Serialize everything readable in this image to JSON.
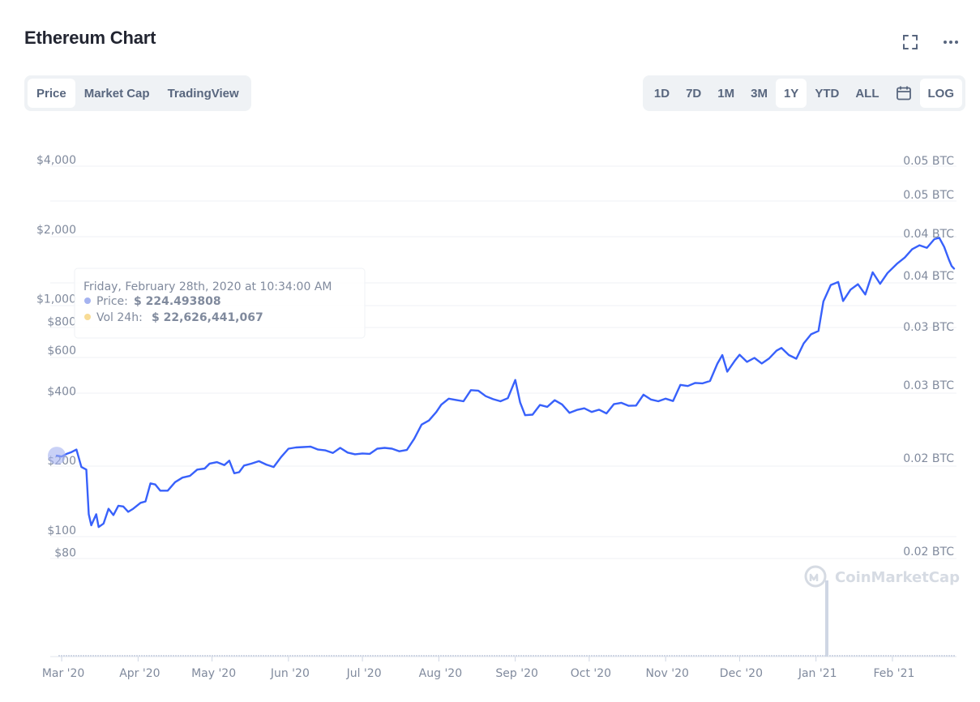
{
  "title": "Ethereum Chart",
  "header_icons": [
    "fullscreen-icon",
    "more-icon"
  ],
  "view_tabs": [
    {
      "label": "Price",
      "active": true
    },
    {
      "label": "Market Cap",
      "active": false
    },
    {
      "label": "TradingView",
      "active": false
    }
  ],
  "range_tabs": [
    {
      "label": "1D",
      "active": false
    },
    {
      "label": "7D",
      "active": false
    },
    {
      "label": "1M",
      "active": false
    },
    {
      "label": "3M",
      "active": false
    },
    {
      "label": "1Y",
      "active": true
    },
    {
      "label": "YTD",
      "active": false
    },
    {
      "label": "ALL",
      "active": false
    }
  ],
  "calendar_icon": "calendar-icon",
  "log_label": "LOG",
  "tooltip": {
    "date": "Friday, February 28th, 2020 at 10:34:00 AM",
    "price_label": "Price:",
    "price_value": "$ 224.493808",
    "volume_label": "Vol 24h:",
    "volume_value": "$ 22,626,441,067",
    "price_dot_color": "#a5b3f0",
    "volume_dot_color": "#f8dc96"
  },
  "watermark": "CoinMarketCap",
  "colors": {
    "line": "#3861fb",
    "grid": "#eff2f5",
    "axis_text": "#808a9d",
    "volume": "#cfd6e4"
  },
  "chart_data": {
    "type": "line",
    "title": "Ethereum Chart",
    "y_scale": "log",
    "ylim": [
      70,
      4200
    ],
    "y_ticks_left": [
      "$4,000",
      "$2,000",
      "$1,000",
      "$800",
      "$600",
      "$400",
      "$200",
      "$100",
      "$80"
    ],
    "y_tick_values_left": [
      4000,
      2000,
      1000,
      800,
      600,
      400,
      200,
      100,
      80
    ],
    "y_ticks_right": [
      "0.05 BTC",
      "0.05 BTC",
      "0.04 BTC",
      "0.04 BTC",
      "0.03 BTC",
      "0.03 BTC",
      "0.02 BTC",
      "0.02 BTC"
    ],
    "x_ticks": [
      "Mar '20",
      "Apr '20",
      "May '20",
      "Jun '20",
      "Jul '20",
      "Aug '20",
      "Sep '20",
      "Oct '20",
      "Nov '20",
      "Dec '20",
      "Jan '21",
      "Feb '21"
    ],
    "grid": true,
    "series": [
      {
        "values": [
          [
            "2020-02-28",
            224
          ],
          [
            "2020-03-01",
            222
          ],
          [
            "2020-03-03",
            228
          ],
          [
            "2020-03-05",
            232
          ],
          [
            "2020-03-07",
            238
          ],
          [
            "2020-03-09",
            200
          ],
          [
            "2020-03-11",
            195
          ],
          [
            "2020-03-12",
            125
          ],
          [
            "2020-03-13",
            112
          ],
          [
            "2020-03-15",
            125
          ],
          [
            "2020-03-16",
            110
          ],
          [
            "2020-03-18",
            114
          ],
          [
            "2020-03-20",
            132
          ],
          [
            "2020-03-22",
            124
          ],
          [
            "2020-03-24",
            136
          ],
          [
            "2020-03-26",
            135
          ],
          [
            "2020-03-28",
            128
          ],
          [
            "2020-03-30",
            132
          ],
          [
            "2020-04-02",
            140
          ],
          [
            "2020-04-04",
            142
          ],
          [
            "2020-04-06",
            170
          ],
          [
            "2020-04-08",
            168
          ],
          [
            "2020-04-10",
            158
          ],
          [
            "2020-04-13",
            158
          ],
          [
            "2020-04-16",
            172
          ],
          [
            "2020-04-19",
            180
          ],
          [
            "2020-04-22",
            183
          ],
          [
            "2020-04-25",
            195
          ],
          [
            "2020-04-28",
            197
          ],
          [
            "2020-04-30",
            207
          ],
          [
            "2020-05-03",
            210
          ],
          [
            "2020-05-06",
            204
          ],
          [
            "2020-05-08",
            213
          ],
          [
            "2020-05-10",
            188
          ],
          [
            "2020-05-12",
            190
          ],
          [
            "2020-05-14",
            203
          ],
          [
            "2020-05-17",
            207
          ],
          [
            "2020-05-20",
            212
          ],
          [
            "2020-05-23",
            205
          ],
          [
            "2020-05-26",
            200
          ],
          [
            "2020-05-29",
            221
          ],
          [
            "2020-06-01",
            240
          ],
          [
            "2020-06-04",
            243
          ],
          [
            "2020-06-07",
            244
          ],
          [
            "2020-06-10",
            245
          ],
          [
            "2020-06-13",
            238
          ],
          [
            "2020-06-16",
            236
          ],
          [
            "2020-06-19",
            230
          ],
          [
            "2020-06-22",
            242
          ],
          [
            "2020-06-25",
            231
          ],
          [
            "2020-06-28",
            227
          ],
          [
            "2020-07-01",
            229
          ],
          [
            "2020-07-04",
            228
          ],
          [
            "2020-07-07",
            240
          ],
          [
            "2020-07-10",
            242
          ],
          [
            "2020-07-13",
            240
          ],
          [
            "2020-07-16",
            234
          ],
          [
            "2020-07-19",
            237
          ],
          [
            "2020-07-22",
            265
          ],
          [
            "2020-07-25",
            305
          ],
          [
            "2020-07-28",
            318
          ],
          [
            "2020-07-31",
            346
          ],
          [
            "2020-08-02",
            372
          ],
          [
            "2020-08-05",
            395
          ],
          [
            "2020-08-08",
            390
          ],
          [
            "2020-08-11",
            385
          ],
          [
            "2020-08-14",
            430
          ],
          [
            "2020-08-17",
            428
          ],
          [
            "2020-08-20",
            405
          ],
          [
            "2020-08-23",
            393
          ],
          [
            "2020-08-26",
            385
          ],
          [
            "2020-08-29",
            397
          ],
          [
            "2020-09-01",
            476
          ],
          [
            "2020-09-03",
            380
          ],
          [
            "2020-09-05",
            335
          ],
          [
            "2020-09-08",
            337
          ],
          [
            "2020-09-11",
            371
          ],
          [
            "2020-09-14",
            364
          ],
          [
            "2020-09-17",
            389
          ],
          [
            "2020-09-20",
            373
          ],
          [
            "2020-09-23",
            343
          ],
          [
            "2020-09-26",
            353
          ],
          [
            "2020-09-29",
            359
          ],
          [
            "2020-10-02",
            346
          ],
          [
            "2020-10-05",
            354
          ],
          [
            "2020-10-08",
            341
          ],
          [
            "2020-10-11",
            374
          ],
          [
            "2020-10-14",
            379
          ],
          [
            "2020-10-17",
            368
          ],
          [
            "2020-10-20",
            369
          ],
          [
            "2020-10-23",
            411
          ],
          [
            "2020-10-26",
            392
          ],
          [
            "2020-10-29",
            385
          ],
          [
            "2020-11-01",
            395
          ],
          [
            "2020-11-04",
            386
          ],
          [
            "2020-11-07",
            453
          ],
          [
            "2020-11-10",
            448
          ],
          [
            "2020-11-13",
            462
          ],
          [
            "2020-11-16",
            460
          ],
          [
            "2020-11-19",
            471
          ],
          [
            "2020-11-22",
            560
          ],
          [
            "2020-11-24",
            610
          ],
          [
            "2020-11-26",
            517
          ],
          [
            "2020-11-29",
            575
          ],
          [
            "2020-12-01",
            612
          ],
          [
            "2020-12-04",
            570
          ],
          [
            "2020-12-07",
            593
          ],
          [
            "2020-12-10",
            561
          ],
          [
            "2020-12-13",
            590
          ],
          [
            "2020-12-16",
            637
          ],
          [
            "2020-12-18",
            655
          ],
          [
            "2020-12-21",
            610
          ],
          [
            "2020-12-24",
            588
          ],
          [
            "2020-12-27",
            685
          ],
          [
            "2020-12-30",
            750
          ],
          [
            "2021-01-02",
            775
          ],
          [
            "2021-01-04",
            1040
          ],
          [
            "2021-01-07",
            1225
          ],
          [
            "2021-01-10",
            1262
          ],
          [
            "2021-01-12",
            1045
          ],
          [
            "2021-01-15",
            1170
          ],
          [
            "2021-01-18",
            1235
          ],
          [
            "2021-01-21",
            1115
          ],
          [
            "2021-01-24",
            1390
          ],
          [
            "2021-01-27",
            1240
          ],
          [
            "2021-01-30",
            1380
          ],
          [
            "2021-02-03",
            1520
          ],
          [
            "2021-02-06",
            1610
          ],
          [
            "2021-02-09",
            1750
          ],
          [
            "2021-02-12",
            1820
          ],
          [
            "2021-02-15",
            1775
          ],
          [
            "2021-02-18",
            1935
          ],
          [
            "2021-02-20",
            1960
          ],
          [
            "2021-02-22",
            1790
          ],
          [
            "2021-02-24",
            1570
          ],
          [
            "2021-02-25",
            1480
          ],
          [
            "2021-02-26",
            1442
          ]
        ]
      }
    ],
    "volume_note": "spike near Jan '21"
  }
}
